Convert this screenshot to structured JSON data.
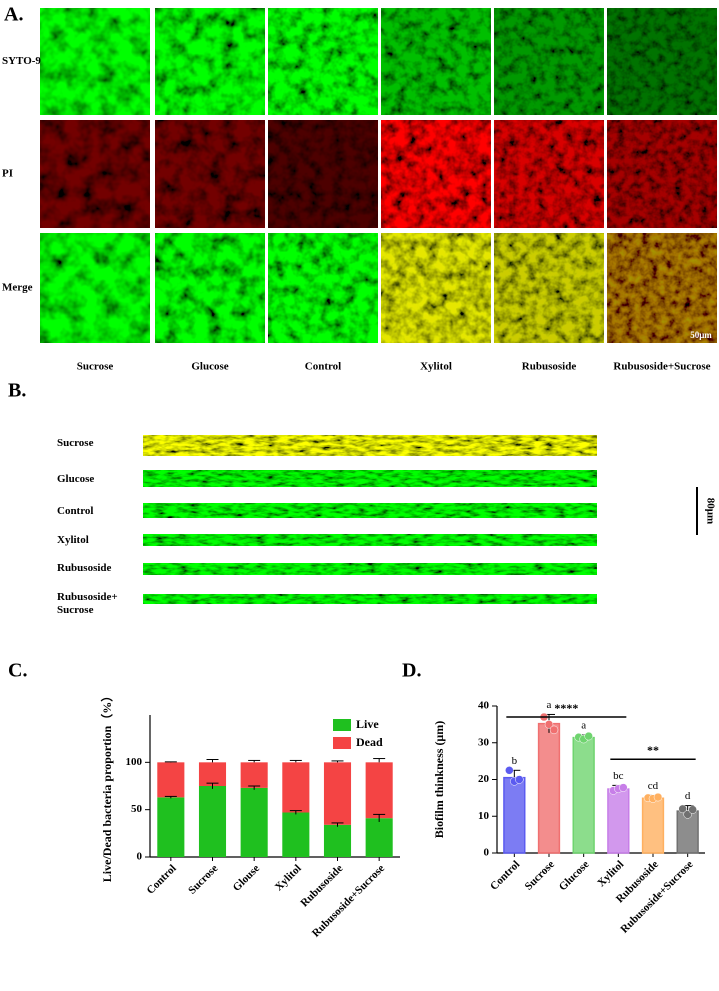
{
  "panel_a": {
    "label": "A.",
    "rows": [
      "SYTO-9",
      "PI",
      "Merge"
    ],
    "columns": [
      "Sucrose",
      "Glucose",
      "Control",
      "Xylitol",
      "Rubusoside",
      "Rubusoside+Sucrose"
    ],
    "scale_bar": "50μm"
  },
  "panel_b": {
    "label": "B.",
    "rows": [
      "Sucrose",
      "Glucose",
      "Control",
      "Xylitol",
      "Rubusoside",
      "Rubusoside+ Sucrose"
    ],
    "scale_bar": "80μm"
  },
  "chart_data": [
    {
      "type": "stacked_bar",
      "label": "C.",
      "y_label": "Live/Dead bacteria proportion（%）",
      "categories": [
        "Control",
        "Sucrose",
        "Glouse",
        "Xylitol",
        "Rubusoside",
        "Rubusoside+Sucrose"
      ],
      "series": [
        {
          "name": "Live",
          "color": "#1fc01f",
          "values": [
            63,
            75,
            73,
            47,
            34,
            41
          ],
          "errors": [
            1,
            3,
            2,
            2,
            2,
            4
          ]
        },
        {
          "name": "Dead",
          "color": "#f44444",
          "values": [
            37,
            25,
            27,
            53,
            66,
            59
          ],
          "errors": [
            0.5,
            3,
            2,
            2,
            1.5,
            4
          ]
        }
      ],
      "ylim": [
        0,
        150
      ],
      "yticks": [
        0,
        50,
        100
      ],
      "legend": "upper right"
    },
    {
      "type": "bar",
      "label": "D.",
      "y_label": "Biofilm thinkness (μm)",
      "categories": [
        "Control",
        "Sucrose",
        "Glucose",
        "Xylitol",
        "Rubusoside",
        "Rubusoside+Sucrose"
      ],
      "values": [
        20.5,
        35.2,
        31.4,
        17.4,
        14.9,
        11.4
      ],
      "errors": [
        2,
        2.5,
        0.7,
        1,
        0.8,
        1.5
      ],
      "colors": [
        "#5b5bf0",
        "#f07070",
        "#6fd46f",
        "#c77ee8",
        "#ffb060",
        "#707070"
      ],
      "points": [
        [
          22.5,
          19.5,
          20
        ],
        [
          37,
          35,
          33.5
        ],
        [
          31.5,
          31,
          31.8
        ],
        [
          17,
          17.5,
          17.8
        ],
        [
          15,
          14.8,
          15.2
        ],
        [
          12,
          10.5,
          11.8
        ]
      ],
      "group_letters": [
        "b",
        "a",
        "a",
        "bc",
        "cd",
        "d"
      ],
      "significance": [
        {
          "text": "****",
          "from": "Control",
          "to": "Xylitol",
          "y": 37
        },
        {
          "text": "**",
          "from": "Xylitol",
          "to": "Rubusoside+Sucrose",
          "y": 25.5
        }
      ],
      "ylim": [
        0,
        40
      ],
      "yticks": [
        0,
        10,
        20,
        30,
        40
      ]
    }
  ]
}
